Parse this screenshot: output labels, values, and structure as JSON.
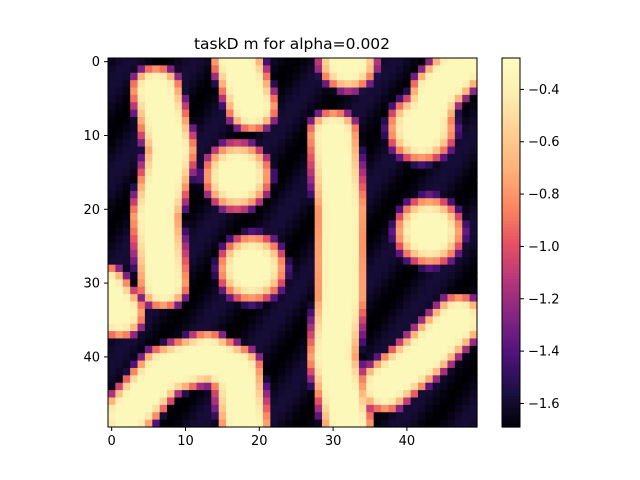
{
  "chart_data": {
    "type": "heatmap",
    "title": "taskD m for alpha=0.002",
    "xlabel": "",
    "ylabel": "",
    "colormap": "magma",
    "grid_size": [
      50,
      50
    ],
    "x_range": [
      -0.5,
      49.5
    ],
    "y_range": [
      49.5,
      -0.5
    ],
    "x_ticks": [
      0,
      10,
      20,
      30,
      40
    ],
    "y_ticks": [
      0,
      10,
      20,
      30,
      40
    ],
    "x_tick_labels": [
      "0",
      "10",
      "20",
      "30",
      "40"
    ],
    "y_tick_labels": [
      "0",
      "10",
      "20",
      "30",
      "40"
    ],
    "value_range": [
      -1.69,
      -0.28
    ],
    "colorbar_ticks": [
      -0.4,
      -0.6,
      -0.8,
      -1.0,
      -1.2,
      -1.4,
      -1.6
    ],
    "colorbar_tick_labels": [
      "−0.4",
      "−0.6",
      "−0.8",
      "−1.0",
      "−1.2",
      "−1.4",
      "−1.6"
    ],
    "approximate_features": {
      "high_spots": [
        {
          "center": [
            17,
            15.5
          ],
          "radius": 3.5
        },
        {
          "center": [
            19,
            28
          ],
          "radius": 3.5
        },
        {
          "center": [
            43,
            23
          ],
          "radius": 3.5
        },
        {
          "center": [
            42,
            9
          ],
          "radius": 3.5
        },
        {
          "center": [
            32,
            0
          ],
          "radius": 3
        }
      ],
      "high_bands": [
        {
          "path": [
            [
              6,
              4
            ],
            [
              8,
              12
            ],
            [
              6,
              21
            ],
            [
              7,
              30
            ]
          ]
        },
        {
          "path": [
            [
              30,
              10
            ],
            [
              31,
              20
            ],
            [
              31,
              32
            ],
            [
              30,
              40
            ],
            [
              32,
              49
            ]
          ]
        },
        {
          "path": [
            [
              17,
              0
            ],
            [
              19,
              6
            ]
          ]
        },
        {
          "path": [
            [
              2,
              48
            ],
            [
              7,
              42
            ],
            [
              13,
              40
            ],
            [
              17,
              42
            ],
            [
              18,
              49
            ]
          ]
        },
        {
          "path": [
            [
              37,
              44
            ],
            [
              42,
              40
            ],
            [
              47,
              35
            ]
          ]
        },
        {
          "path": [
            [
              42,
              10
            ],
            [
              44,
              4
            ],
            [
              48,
              0
            ]
          ]
        },
        {
          "path": [
            [
              -1,
              31
            ],
            [
              1,
              34
            ]
          ]
        }
      ]
    }
  }
}
